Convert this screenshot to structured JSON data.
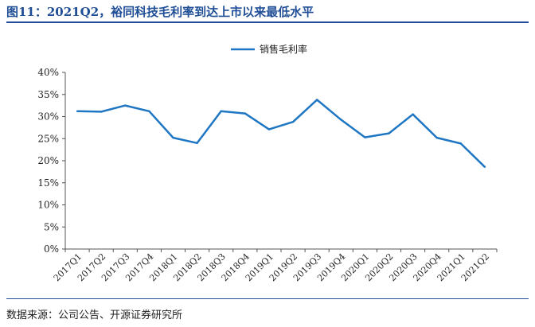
{
  "figure": {
    "title": "图11：2021Q2，裕同科技毛利率到达上市以来最低水平",
    "source": "数据来源：公司公告、开源证券研究所"
  },
  "chart_data": {
    "type": "line",
    "categories": [
      "2017Q1",
      "2017Q2",
      "2017Q3",
      "2017Q4",
      "2018Q1",
      "2018Q2",
      "2018Q3",
      "2018Q4",
      "2019Q1",
      "2019Q2",
      "2019Q3",
      "2019Q4",
      "2020Q1",
      "2020Q2",
      "2020Q3",
      "2020Q4",
      "2021Q1",
      "2021Q2"
    ],
    "series": [
      {
        "name": "销售毛利率",
        "values": [
          31.2,
          31.1,
          32.5,
          31.2,
          25.2,
          24.0,
          31.2,
          30.7,
          27.1,
          28.8,
          33.8,
          29.3,
          25.3,
          26.2,
          30.5,
          25.2,
          23.9,
          18.6
        ],
        "color": "#1f77c4"
      }
    ],
    "ylim": [
      0,
      40
    ],
    "yticks": [
      0,
      5,
      10,
      15,
      20,
      25,
      30,
      35,
      40
    ],
    "ytick_suffix": "%",
    "legend_position": "top-center",
    "grid": false,
    "xlabel": "",
    "ylabel": ""
  }
}
